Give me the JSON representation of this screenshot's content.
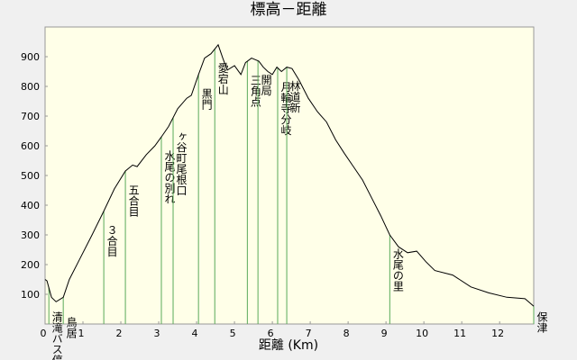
{
  "chart_data": {
    "type": "line",
    "title": "標高－距離",
    "x_label": "距離 (Km)",
    "xlim": [
      0,
      12.9
    ],
    "xticks": [
      0,
      1,
      2,
      3,
      4,
      5,
      6,
      7,
      8,
      9,
      10,
      11,
      12
    ],
    "ylim": [
      0,
      1000
    ],
    "yticks": [
      100,
      200,
      300,
      400,
      500,
      600,
      700,
      800,
      900
    ],
    "color": "#000000",
    "landmark_color": "#5aaa5a",
    "x": [
      0,
      0.05,
      0.17,
      0.29,
      0.48,
      0.64,
      0.88,
      1.24,
      1.55,
      1.83,
      2.12,
      2.31,
      2.43,
      2.67,
      2.9,
      3.07,
      3.26,
      3.5,
      3.74,
      3.86,
      4.05,
      4.21,
      4.38,
      4.57,
      4.69,
      4.81,
      5.0,
      5.17,
      5.29,
      5.45,
      5.64,
      5.76,
      5.88,
      6.0,
      6.12,
      6.24,
      6.38,
      6.52,
      6.71,
      6.95,
      7.19,
      7.43,
      7.67,
      7.9,
      8.14,
      8.38,
      8.62,
      8.86,
      9.1,
      9.33,
      9.57,
      9.81,
      10.05,
      10.29,
      10.76,
      11.24,
      11.71,
      12.19,
      12.67,
      12.9
    ],
    "values": [
      150,
      145,
      90,
      75,
      90,
      150,
      210,
      300,
      380,
      455,
      515,
      535,
      530,
      570,
      600,
      630,
      665,
      725,
      760,
      770,
      840,
      895,
      910,
      940,
      895,
      855,
      870,
      840,
      880,
      895,
      885,
      865,
      850,
      840,
      865,
      850,
      865,
      860,
      820,
      760,
      715,
      680,
      620,
      575,
      530,
      485,
      425,
      365,
      300,
      260,
      240,
      245,
      210,
      180,
      165,
      125,
      105,
      90,
      85,
      60
    ],
    "landmarks": [
      {
        "label": "３合目",
        "x": 1.55
      },
      {
        "label": "五合目",
        "x": 2.12
      },
      {
        "label": "水尾の別れ",
        "x": 3.07
      },
      {
        "label": "ヶ谷町尾根口",
        "x": 3.38
      },
      {
        "label": "黒門",
        "x": 4.05
      },
      {
        "label": "愛宕山",
        "x": 4.48
      },
      {
        "label": "三角点",
        "x": 5.34
      },
      {
        "label": "開局",
        "x": 5.62
      },
      {
        "label": "月輪寺分岐",
        "x": 6.14
      },
      {
        "label": "林道新",
        "x": 6.38
      },
      {
        "label": "水尾の里",
        "x": 9.1
      }
    ],
    "axis_landmarks": [
      {
        "label": "清滝バス停",
        "x": 0.1
      },
      {
        "label": "鳥居",
        "x": 0.48
      },
      {
        "label": "保津",
        "x": 12.9
      }
    ]
  }
}
